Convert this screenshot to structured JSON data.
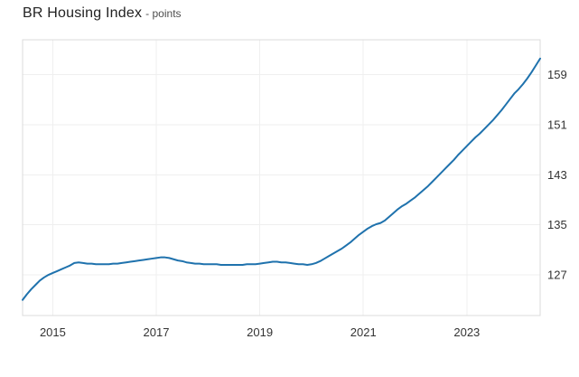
{
  "header": {
    "title": "BR Housing Index",
    "subtitle": "- points"
  },
  "chart_data": {
    "type": "line",
    "title": "BR Housing Index",
    "ylabel": "points",
    "xlabel": "",
    "legend_position": "none",
    "grid": true,
    "x_start_decimal_year": 2014.4167,
    "freq_per_year": 12,
    "start_label": "2014-06",
    "end_label": "2024-06",
    "xlim": [
      2014.4167,
      2024.4167
    ],
    "ylim": [
      120.5,
      164.6
    ],
    "x_ticks": [
      "2015",
      "2017",
      "2019",
      "2021",
      "2023"
    ],
    "x_tick_years": [
      2015,
      2017,
      2019,
      2021,
      2023
    ],
    "y_ticks": [
      "127",
      "135",
      "143",
      "151",
      "159"
    ],
    "y_tick_values": [
      127,
      135,
      143,
      151,
      159
    ],
    "series": [
      {
        "name": "BR Housing Index",
        "values": [
          123.0,
          123.9,
          124.7,
          125.4,
          126.1,
          126.6,
          127.0,
          127.3,
          127.6,
          127.9,
          128.2,
          128.5,
          128.9,
          129.0,
          128.9,
          128.8,
          128.8,
          128.7,
          128.7,
          128.7,
          128.7,
          128.8,
          128.8,
          128.9,
          129.0,
          129.1,
          129.2,
          129.3,
          129.4,
          129.5,
          129.6,
          129.7,
          129.8,
          129.8,
          129.7,
          129.5,
          129.3,
          129.2,
          129.0,
          128.9,
          128.8,
          128.8,
          128.7,
          128.7,
          128.7,
          128.7,
          128.6,
          128.6,
          128.6,
          128.6,
          128.6,
          128.6,
          128.7,
          128.7,
          128.7,
          128.8,
          128.9,
          129.0,
          129.1,
          129.1,
          129.0,
          129.0,
          128.9,
          128.8,
          128.7,
          128.7,
          128.6,
          128.7,
          128.9,
          129.2,
          129.6,
          130.0,
          130.4,
          130.8,
          131.2,
          131.7,
          132.2,
          132.8,
          133.4,
          133.9,
          134.4,
          134.8,
          135.1,
          135.3,
          135.7,
          136.3,
          136.9,
          137.5,
          138.0,
          138.4,
          138.9,
          139.4,
          140.0,
          140.6,
          141.2,
          141.9,
          142.6,
          143.3,
          144.0,
          144.7,
          145.4,
          146.2,
          146.9,
          147.6,
          148.3,
          149.0,
          149.6,
          150.3,
          151.0,
          151.7,
          152.5,
          153.3,
          154.2,
          155.1,
          156.0,
          156.7,
          157.5,
          158.4,
          159.4,
          160.5,
          161.6
        ]
      }
    ],
    "colors": {
      "line": "#1F72AD",
      "grid": "#EFEFEF",
      "border": "#DBDBDB",
      "tick_label": "#333333"
    }
  }
}
